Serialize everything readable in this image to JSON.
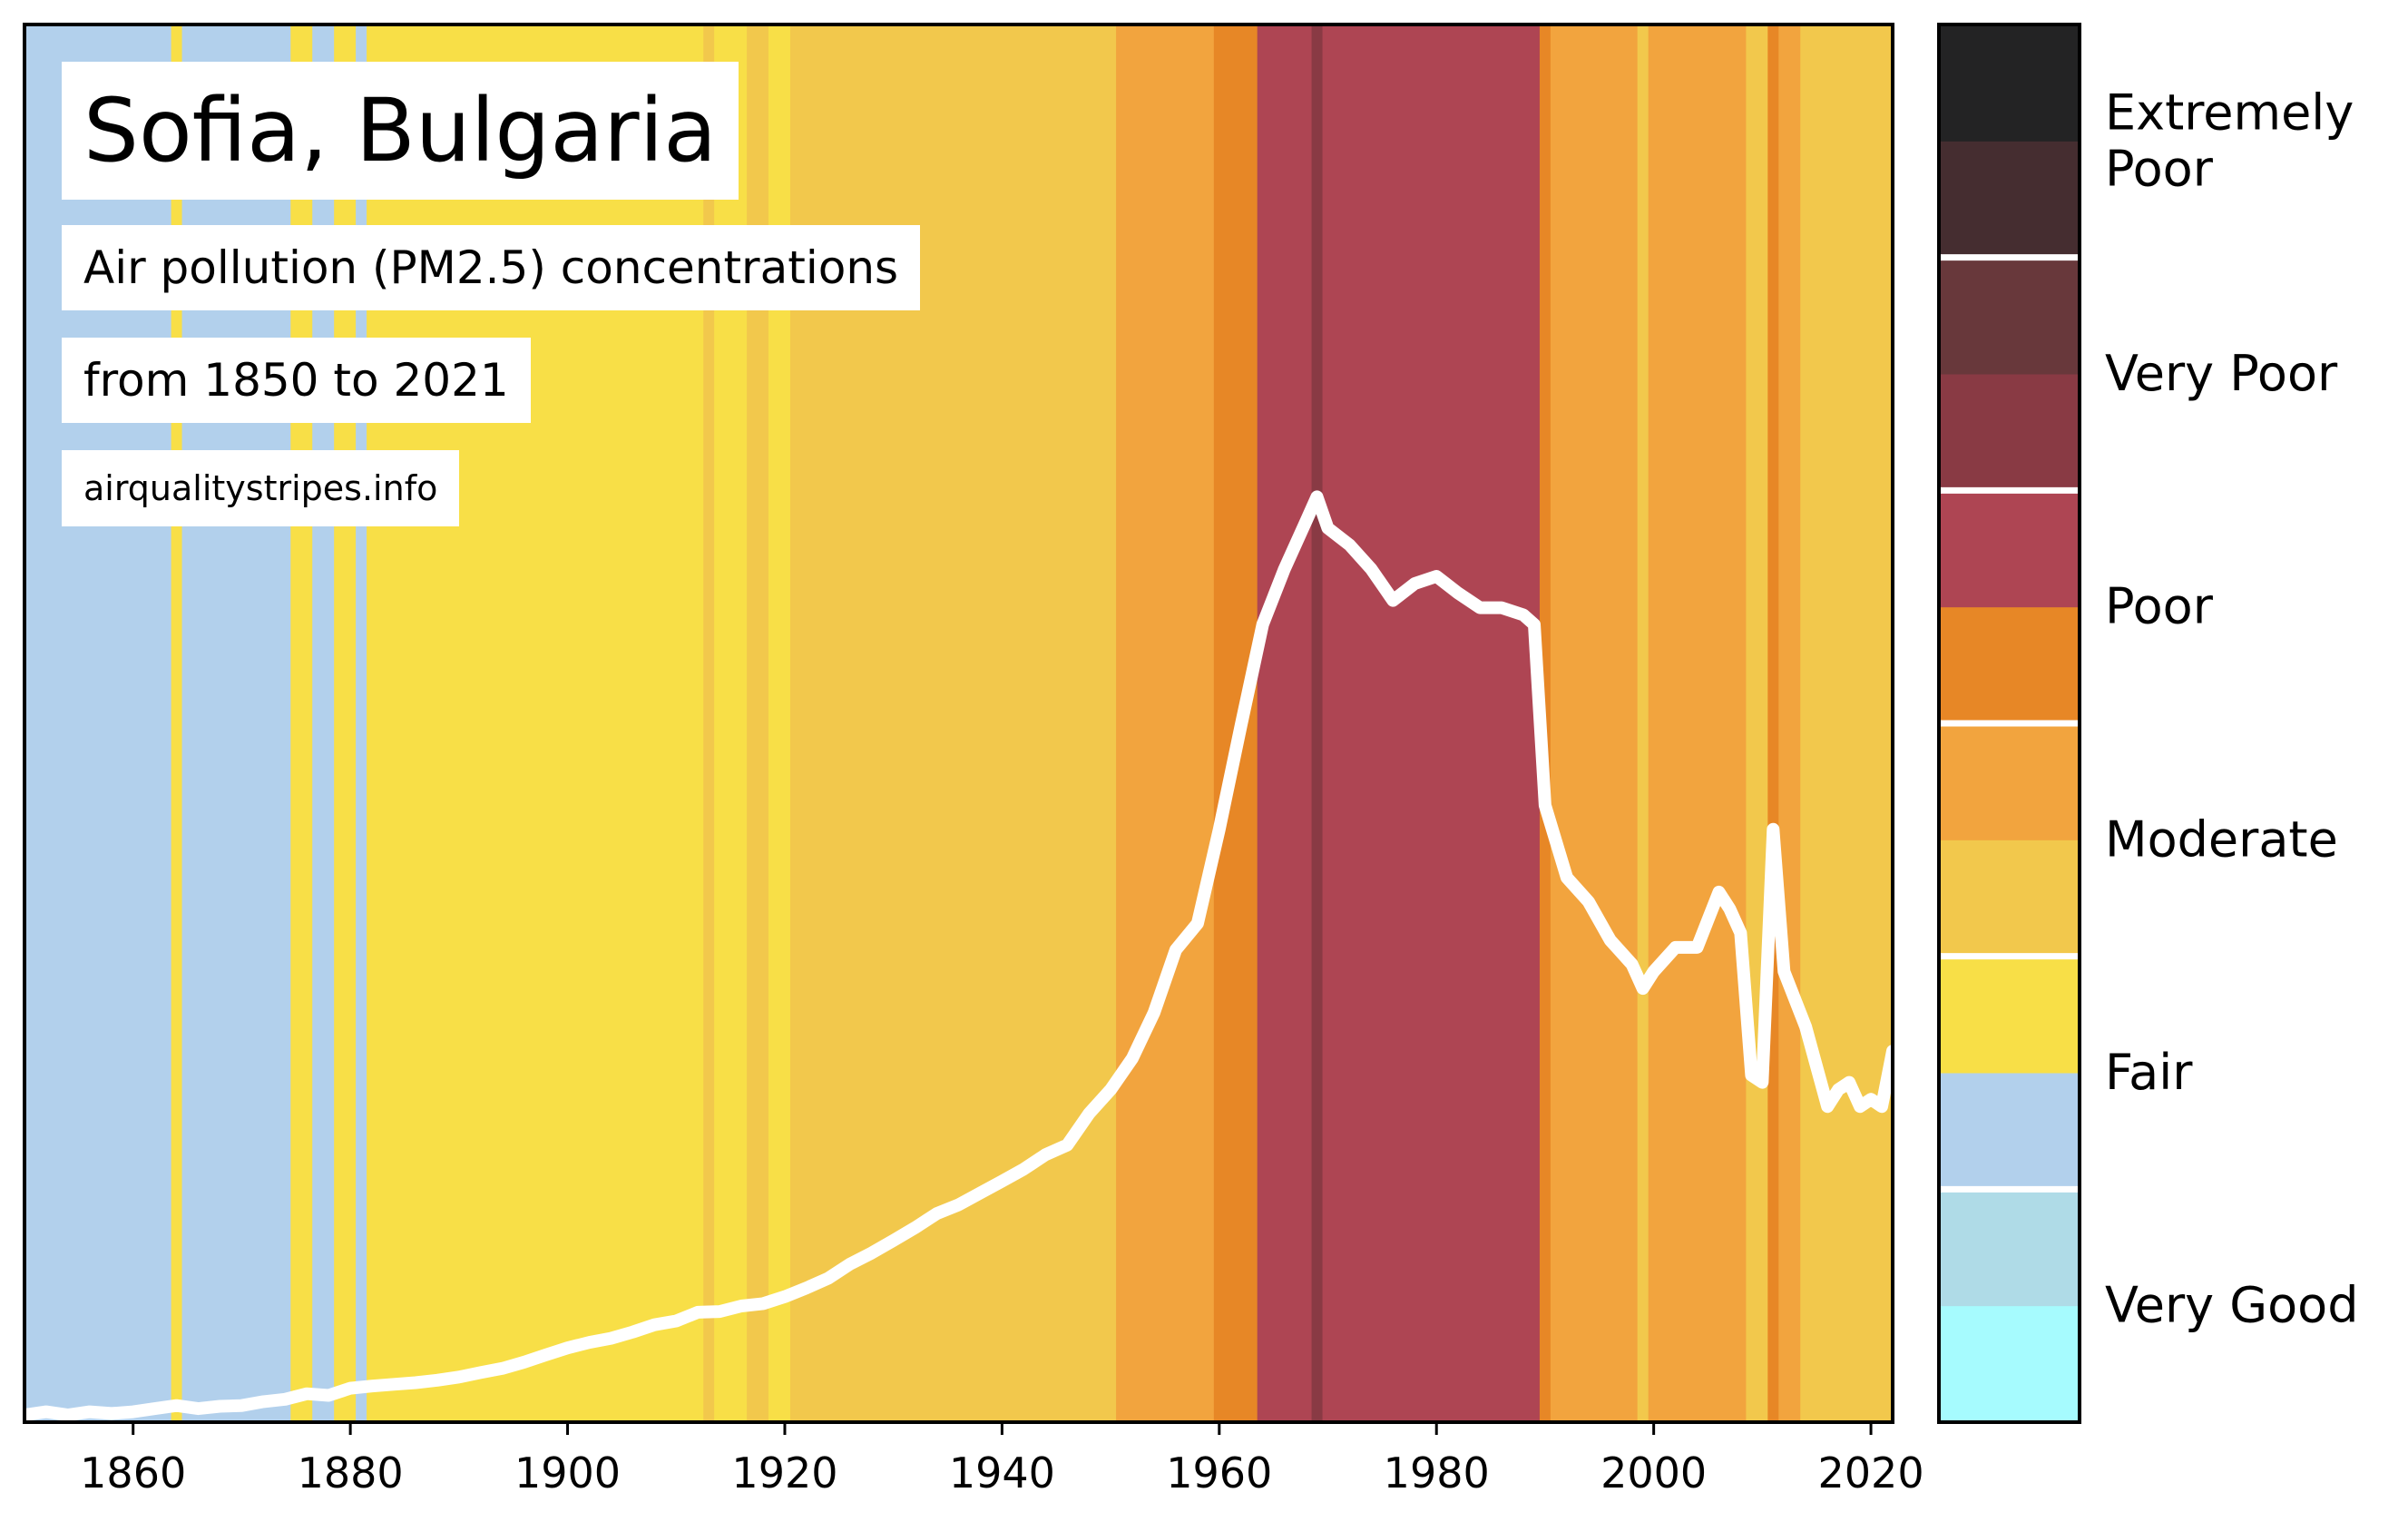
{
  "chart_data": {
    "type": "line",
    "title": "Sofia, Bulgaria",
    "subtitle": "Air pollution (PM2.5) concentrations",
    "period": "from 1850 to 2021",
    "source": "airqualitystripes.info",
    "xlabel": "",
    "ylabel": "",
    "xlim": [
      1850,
      2022
    ],
    "x_ticks": [
      1860,
      1880,
      1900,
      1920,
      1940,
      1960,
      1980,
      2000,
      2020
    ],
    "grid": false,
    "legend": "colorbar-right",
    "background_stripes": [
      {
        "from": 1850,
        "to": 1863.5,
        "category": "Fair"
      },
      {
        "from": 1863.5,
        "to": 1864.5,
        "category": "Moderate"
      },
      {
        "from": 1864.5,
        "to": 1874.5,
        "category": "Fair"
      },
      {
        "from": 1874.5,
        "to": 1876.5,
        "category": "Moderate"
      },
      {
        "from": 1876.5,
        "to": 1878.5,
        "category": "Fair"
      },
      {
        "from": 1878.5,
        "to": 1880.5,
        "category": "Moderate"
      },
      {
        "from": 1880.5,
        "to": 1881.5,
        "category": "Fair"
      },
      {
        "from": 1881.5,
        "to": 1912.5,
        "category": "Moderate"
      },
      {
        "from": 1912.5,
        "to": 1913.5,
        "category": "Moderate-high"
      },
      {
        "from": 1913.5,
        "to": 1916.5,
        "category": "Moderate"
      },
      {
        "from": 1916.5,
        "to": 1918.5,
        "category": "Moderate-high"
      },
      {
        "from": 1918.5,
        "to": 1920.5,
        "category": "Moderate"
      },
      {
        "from": 1920.5,
        "to": 1950.5,
        "category": "Moderate-high"
      },
      {
        "from": 1950.5,
        "to": 1959.5,
        "category": "Poor"
      },
      {
        "from": 1959.5,
        "to": 1963.5,
        "category": "Poor-high"
      },
      {
        "from": 1963.5,
        "to": 1968.5,
        "category": "Very Poor"
      },
      {
        "from": 1968.5,
        "to": 1969.5,
        "category": "Very Poor-high"
      },
      {
        "from": 1969.5,
        "to": 1989.5,
        "category": "Very Poor"
      },
      {
        "from": 1989.5,
        "to": 1990.5,
        "category": "Poor-high"
      },
      {
        "from": 1990.5,
        "to": 1998.5,
        "category": "Poor"
      },
      {
        "from": 1998.5,
        "to": 1999.5,
        "category": "Moderate-high"
      },
      {
        "from": 1999.5,
        "to": 2008.5,
        "category": "Poor"
      },
      {
        "from": 2008.5,
        "to": 2010.5,
        "category": "Moderate-high"
      },
      {
        "from": 2010.5,
        "to": 2011.5,
        "category": "Poor-high"
      },
      {
        "from": 2011.5,
        "to": 2013.5,
        "category": "Poor"
      },
      {
        "from": 2013.5,
        "to": 2022,
        "category": "Moderate-high"
      }
    ],
    "series": [
      {
        "color": "#ffffff",
        "x": [
          1850,
          1852,
          1854,
          1856,
          1858,
          1860,
          1862,
          1864,
          1866,
          1868,
          1870,
          1872,
          1874,
          1876,
          1878,
          1880,
          1882,
          1884,
          1886,
          1888,
          1890,
          1892,
          1894,
          1896,
          1898,
          1900,
          1902,
          1904,
          1906,
          1908,
          1910,
          1912,
          1914,
          1916,
          1918,
          1920,
          1922,
          1924,
          1926,
          1928,
          1930,
          1932,
          1934,
          1936,
          1938,
          1940,
          1942,
          1944,
          1946,
          1948,
          1950,
          1952,
          1954,
          1956,
          1958,
          1960,
          1962,
          1964,
          1966,
          1968,
          1969,
          1970,
          1972,
          1974,
          1976,
          1978,
          1980,
          1982,
          1984,
          1986,
          1988,
          1989,
          1990,
          1992,
          1994,
          1996,
          1998,
          1999,
          2000,
          2002,
          2004,
          2006,
          2007,
          2008,
          2009,
          2010,
          2011,
          2012,
          2014,
          2016,
          2017,
          2018,
          2019,
          2020,
          2021,
          2022
        ],
        "values": [
          0.3,
          0.43,
          0.3,
          0.43,
          0.36,
          0.43,
          0.56,
          0.69,
          0.56,
          0.66,
          0.69,
          0.85,
          0.95,
          1.18,
          1.11,
          1.41,
          1.5,
          1.57,
          1.64,
          1.74,
          1.87,
          2.06,
          2.23,
          2.49,
          2.79,
          3.08,
          3.31,
          3.48,
          3.74,
          4.04,
          4.2,
          4.56,
          4.59,
          4.82,
          4.92,
          5.21,
          5.57,
          5.97,
          6.56,
          7.02,
          7.54,
          8.07,
          8.66,
          9.02,
          9.51,
          10.0,
          10.5,
          11.1,
          11.5,
          12.8,
          13.8,
          15.1,
          17.0,
          19.6,
          20.7,
          24.6,
          28.9,
          33.1,
          35.4,
          37.4,
          38.4,
          37.1,
          36.4,
          35.4,
          34.1,
          34.8,
          35.1,
          34.4,
          33.8,
          33.8,
          33.5,
          33.1,
          25.6,
          22.6,
          21.6,
          20.0,
          19.0,
          18.0,
          18.7,
          19.7,
          19.7,
          22.0,
          21.3,
          20.3,
          14.4,
          14.1,
          24.6,
          18.7,
          16.4,
          13.1,
          13.8,
          14.1,
          13.1,
          13.4,
          13.1,
          15.4
        ]
      }
    ],
    "colorbar": {
      "bands": [
        "#a6fbfe",
        "#afdbe7",
        "#b2d0ec",
        "#f8df47",
        "#f2c84c",
        "#f2a43e",
        "#e78726",
        "#ae4553",
        "#893a44",
        "#68383b",
        "#452d30",
        "#232324"
      ],
      "labels": [
        "Very Good",
        "Fair",
        "Moderate",
        "Poor",
        "Very Poor",
        "Extremely Poor"
      ]
    },
    "category_colors": {
      "Fair": "#b2d0ec",
      "Moderate": "#f8df47",
      "Moderate-high": "#f2c84c",
      "Poor": "#f2a43e",
      "Poor-high": "#e78726",
      "Very Poor": "#ae4553",
      "Very Poor-high": "#893a44"
    }
  }
}
